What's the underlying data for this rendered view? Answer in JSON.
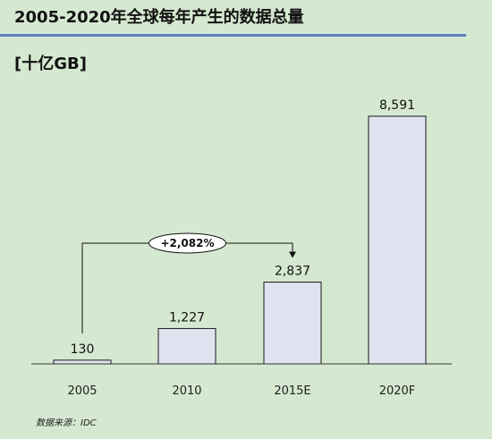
{
  "header": {
    "title": "2005-2020年全球每年产生的数据总量",
    "unit": "[十亿GB]"
  },
  "footer": {
    "source": "数据来源：IDC"
  },
  "chart_data": {
    "type": "bar",
    "categories": [
      "2005",
      "2010",
      "2015E",
      "2020F"
    ],
    "values": [
      130,
      1227,
      2837,
      8591
    ],
    "value_labels": [
      "130",
      "1,227",
      "2,837",
      "8,591"
    ],
    "ylim": [
      0,
      9000
    ],
    "grid": false,
    "annotation": {
      "text": "+2,082%",
      "from_category": "2005",
      "to_category": "2015E"
    },
    "colors": {
      "bar_fill": "#dfe3f0",
      "bar_stroke": "#1a1a1a",
      "background": "#d5e8d0",
      "title_rule": "#5b7fbf"
    }
  }
}
